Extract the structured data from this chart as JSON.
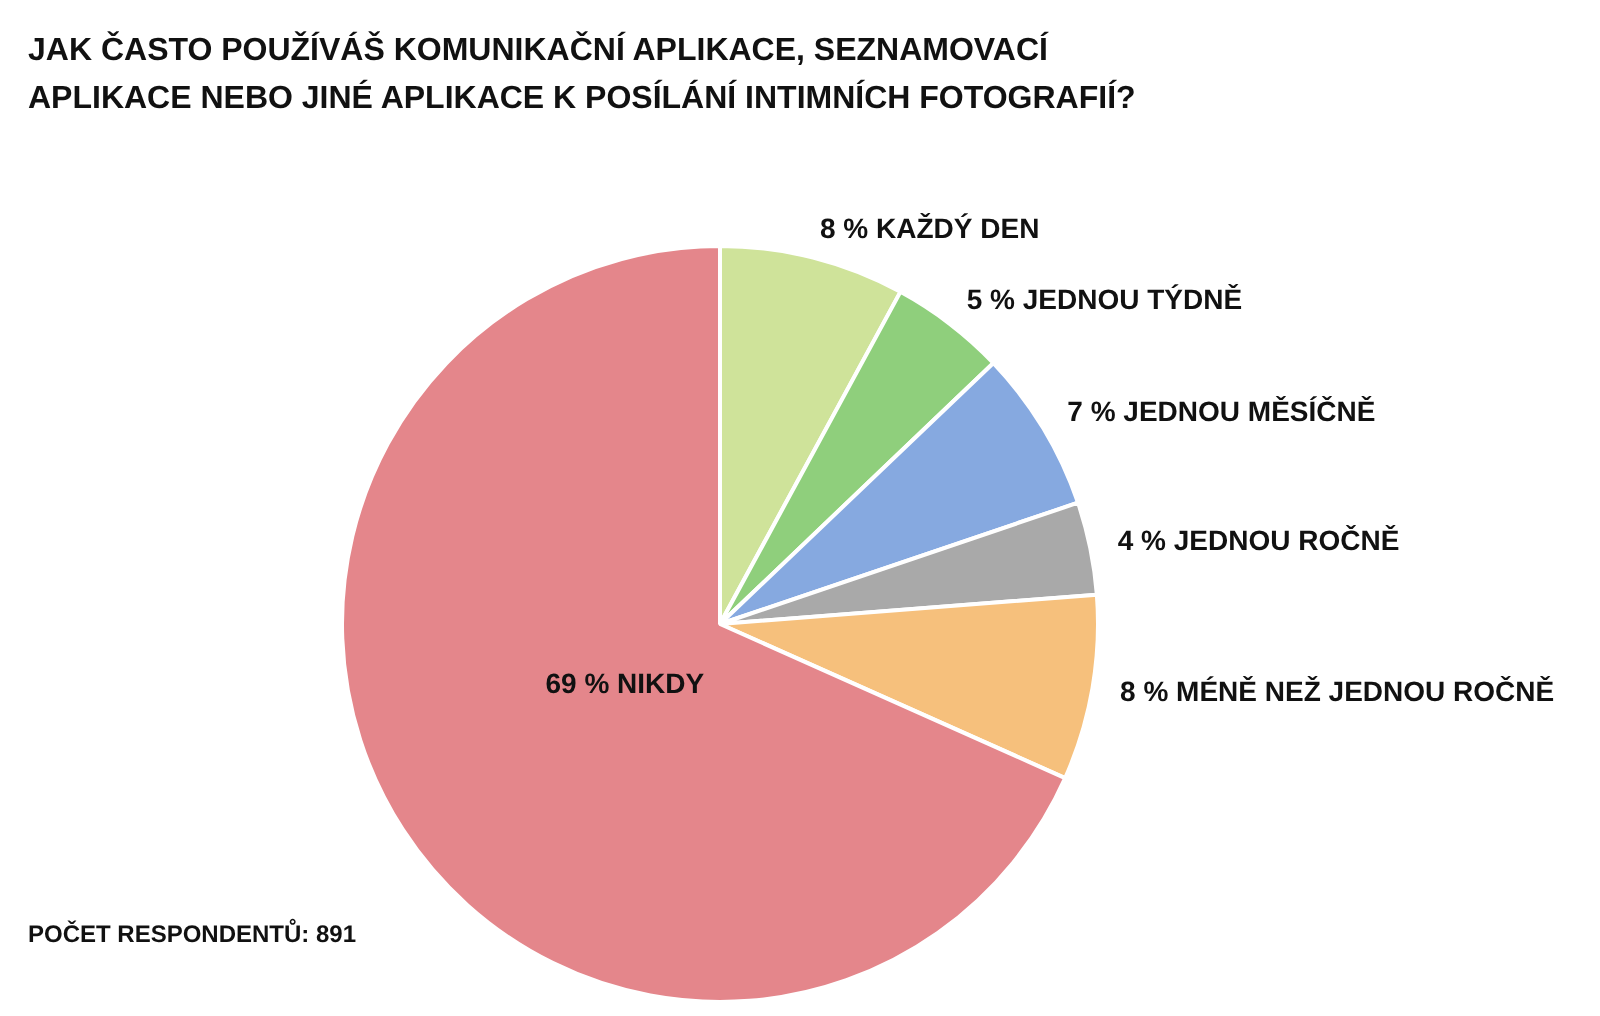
{
  "chart_data": {
    "type": "pie",
    "title": "JAK ČASTO POUŽÍVÁŠ KOMUNIKAČNÍ APLIKACE, SEZNAMOVACÍ APLIKACE NEBO JINÉ APLIKACE K POSÍLÁNÍ INTIMNÍCH FOTOGRAFIÍ?",
    "categories": [
      "KAŽDÝ DEN",
      "JEDNOU TÝDNĚ",
      "JEDNOU MĚSÍČNĚ",
      "JEDNOU ROČNĚ",
      "MÉNĚ NEŽ JEDNOU ROČNĚ",
      "NIKDY"
    ],
    "values": [
      8,
      5,
      7,
      4,
      8,
      69
    ],
    "value_labels": [
      "8 %",
      "5 %",
      "7 %",
      "4 %",
      "8 %",
      "69 %"
    ],
    "colors": [
      "#cfe39a",
      "#8fcf7c",
      "#86a9e0",
      "#a9a9a9",
      "#f6c07c",
      "#e4868b"
    ],
    "legend": false,
    "annotations": [
      "POČET RESPONDENTŮ: 891"
    ]
  }
}
